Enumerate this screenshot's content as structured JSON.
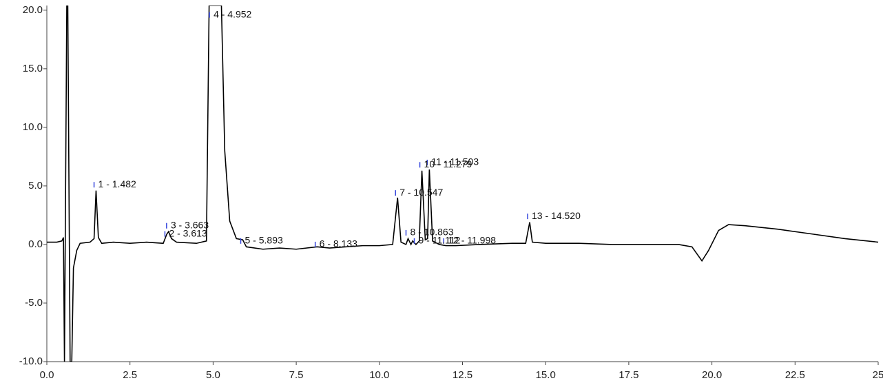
{
  "chart_data": {
    "type": "line",
    "x": [
      0.0,
      0.3,
      0.45,
      0.5,
      0.53,
      0.6,
      0.63,
      0.7,
      0.75,
      0.8,
      0.9,
      1.0,
      1.3,
      1.42,
      1.48,
      1.55,
      1.65,
      2.0,
      2.5,
      3.0,
      3.5,
      3.61,
      3.66,
      3.75,
      3.9,
      4.5,
      4.8,
      4.88,
      5.05,
      5.25,
      5.35,
      5.5,
      5.7,
      5.89,
      6.0,
      6.5,
      7.0,
      7.5,
      8.13,
      8.5,
      9.0,
      9.5,
      10.0,
      10.4,
      10.547,
      10.65,
      10.8,
      10.863,
      10.95,
      11.0,
      11.1,
      11.2,
      11.279,
      11.38,
      11.45,
      11.503,
      11.6,
      11.8,
      12.0,
      12.3,
      13.0,
      14.0,
      14.4,
      14.52,
      14.6,
      15.0,
      16.0,
      17.0,
      18.0,
      19.0,
      19.4,
      19.7,
      19.9,
      20.2,
      20.5,
      21.0,
      22.0,
      23.0,
      24.0,
      25.0
    ],
    "series": [
      {
        "color": "#000000",
        "values": [
          0.2,
          0.2,
          0.3,
          0.6,
          -10,
          20.4,
          20.4,
          -10,
          -10,
          -2,
          -0.5,
          0.1,
          0.2,
          0.5,
          4.6,
          0.6,
          0.1,
          0.2,
          0.1,
          0.2,
          0.1,
          0.9,
          1.1,
          0.5,
          0.2,
          0.1,
          0.3,
          20.4,
          20.4,
          20.4,
          8,
          2,
          0.5,
          0.4,
          -0.2,
          -0.4,
          -0.3,
          -0.4,
          -0.2,
          -0.3,
          -0.2,
          -0.1,
          -0.1,
          0.0,
          4.0,
          0.2,
          0.0,
          0.5,
          0.0,
          0.3,
          0.0,
          0.3,
          6.3,
          0.4,
          0.5,
          6.4,
          0.3,
          0.0,
          -0.1,
          -0.1,
          0.0,
          0.1,
          0.1,
          1.9,
          0.2,
          0.1,
          0.1,
          0.0,
          0.0,
          0.0,
          -0.2,
          -1.4,
          -0.5,
          1.2,
          1.7,
          1.6,
          1.3,
          0.9,
          0.5,
          0.2
        ]
      }
    ],
    "annotations": [
      {
        "text": "1 - 1.482",
        "x": 1.482,
        "y": 5.1
      },
      {
        "text": "2 - 3.613",
        "x": 3.613,
        "y": 0.9
      },
      {
        "text": "3 - 3.663",
        "x": 3.663,
        "y": 1.6
      },
      {
        "text": "4 - 4.952",
        "x": 4.952,
        "y": 19.6
      },
      {
        "text": "5 - 5.893",
        "x": 5.893,
        "y": 0.3
      },
      {
        "text": "6 - 8.133",
        "x": 8.133,
        "y": 0.0
      },
      {
        "text": "7 - 10.547",
        "x": 10.547,
        "y": 4.4
      },
      {
        "text": "8 - 10.863",
        "x": 10.863,
        "y": 1.0
      },
      {
        "text": "9 - 11.112",
        "x": 11.112,
        "y": 0.3
      },
      {
        "text": "10 - 11.279",
        "x": 11.279,
        "y": 6.8
      },
      {
        "text": "11 - 11.503",
        "x": 11.503,
        "y": 7.0
      },
      {
        "text": "12 - 11.998",
        "x": 11.998,
        "y": 0.3
      },
      {
        "text": "13 - 14.520",
        "x": 14.52,
        "y": 2.4
      }
    ],
    "xlim": [
      0,
      25
    ],
    "xticks": [
      {
        "value": 0,
        "label": "0.0"
      },
      2.5,
      {
        "value": 5,
        "label": "5.0"
      },
      7.5,
      {
        "value": 10,
        "label": "10.0"
      },
      12.5,
      {
        "value": 15,
        "label": "15.0"
      },
      17.5,
      {
        "value": 20,
        "label": "20.0"
      },
      22.5,
      25
    ],
    "ylim": [
      -10,
      20.4
    ],
    "yticks": [
      {
        "value": -10,
        "label": "-10.0"
      },
      {
        "value": -5,
        "label": "-5.0"
      },
      {
        "value": 0,
        "label": "0.0"
      },
      {
        "value": 5,
        "label": "5.0"
      },
      {
        "value": 10,
        "label": "10.0"
      },
      {
        "value": 15,
        "label": "15.0"
      },
      {
        "value": 20,
        "label": "20.0"
      }
    ],
    "grid": false
  }
}
